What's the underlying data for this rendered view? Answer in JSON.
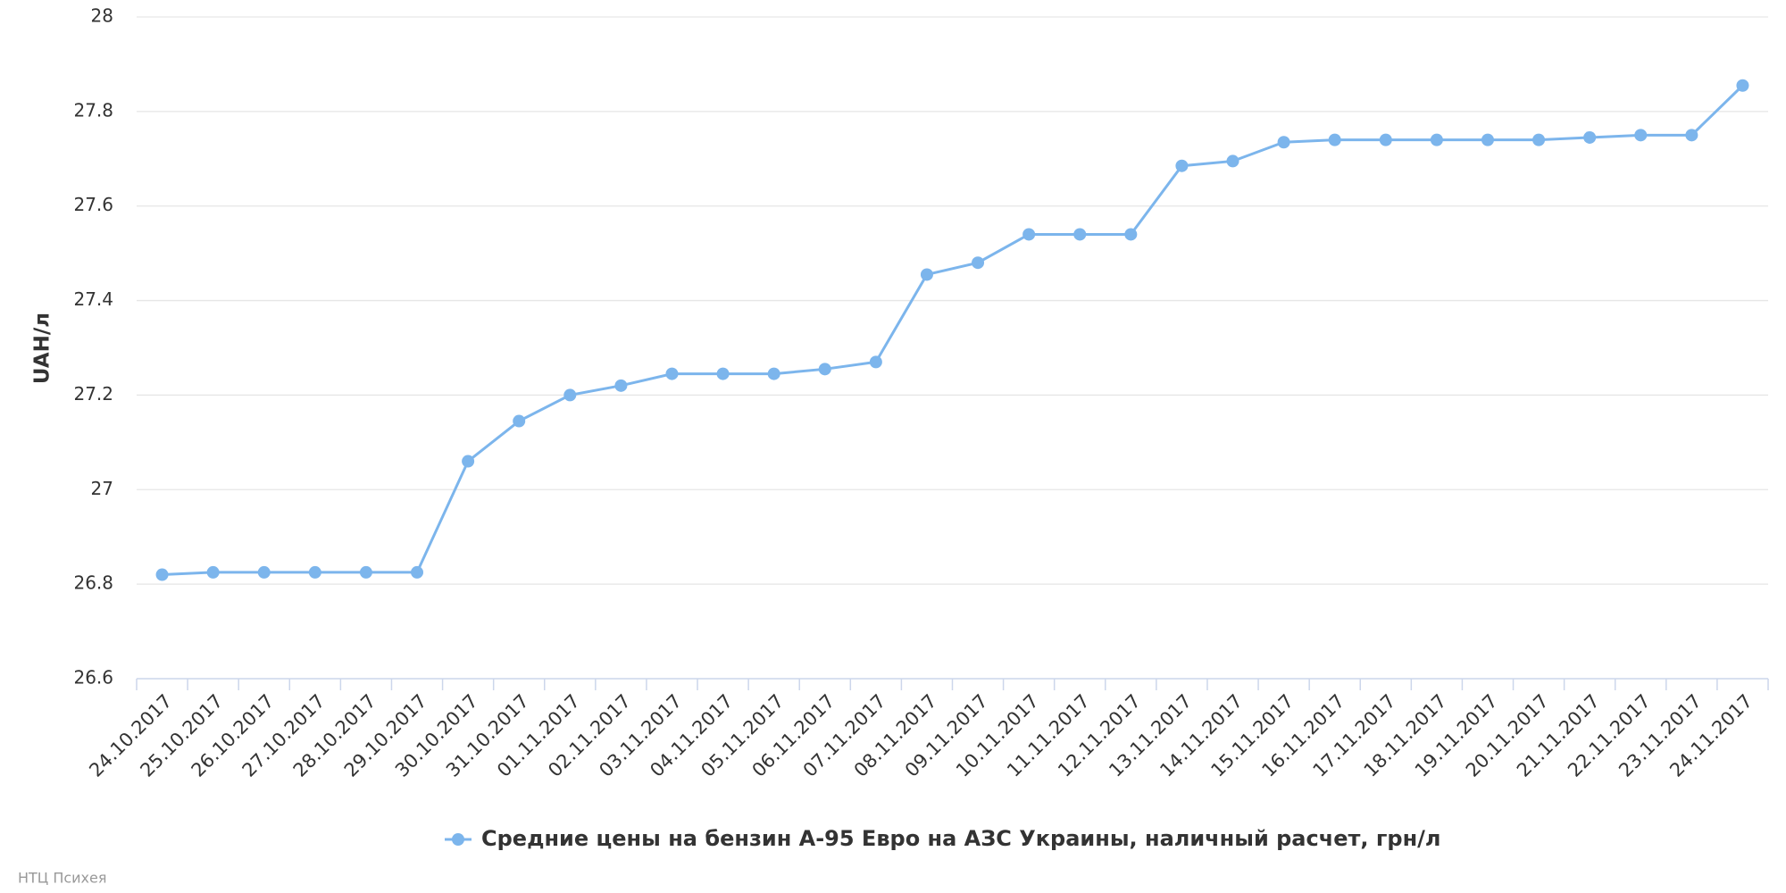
{
  "chart_data": {
    "type": "line",
    "y_label": "UAH/л",
    "categories": [
      "24.10.2017",
      "25.10.2017",
      "26.10.2017",
      "27.10.2017",
      "28.10.2017",
      "29.10.2017",
      "30.10.2017",
      "31.10.2017",
      "01.11.2017",
      "02.11.2017",
      "03.11.2017",
      "04.11.2017",
      "05.11.2017",
      "06.11.2017",
      "07.11.2017",
      "08.11.2017",
      "09.11.2017",
      "10.11.2017",
      "11.11.2017",
      "12.11.2017",
      "13.11.2017",
      "14.11.2017",
      "15.11.2017",
      "16.11.2017",
      "17.11.2017",
      "18.11.2017",
      "19.11.2017",
      "20.11.2017",
      "21.11.2017",
      "22.11.2017",
      "23.11.2017",
      "24.11.2017"
    ],
    "series": [
      {
        "name": "Средние цены на бензин А-95 Евро на АЗС Украины, наличный расчет, грн/л",
        "color": "#7cb5ec",
        "values": [
          26.82,
          26.825,
          26.825,
          26.825,
          26.825,
          26.825,
          27.06,
          27.145,
          27.2,
          27.22,
          27.245,
          27.245,
          27.245,
          27.255,
          27.27,
          27.455,
          27.48,
          27.54,
          27.54,
          27.54,
          27.685,
          27.695,
          27.735,
          27.74,
          27.74,
          27.74,
          27.74,
          27.74,
          27.745,
          27.75,
          27.75,
          27.855
        ]
      }
    ],
    "ylim": [
      26.6,
      28
    ],
    "yticks": [
      26.6,
      26.8,
      27,
      27.2,
      27.4,
      27.6,
      27.8,
      28
    ],
    "grid": true,
    "legend": "bottom",
    "credit": "НТЦ Психея"
  }
}
